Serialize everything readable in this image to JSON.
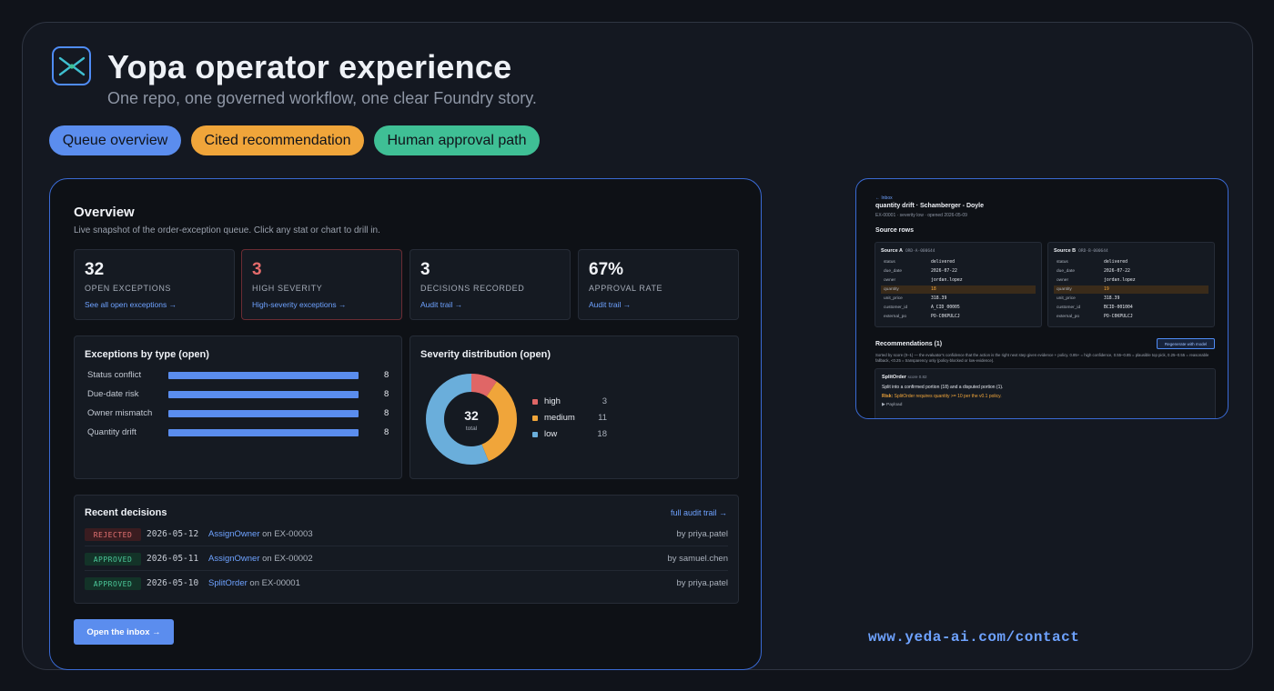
{
  "hero": {
    "title": "Yopa operator experience",
    "subtitle": "One repo, one governed workflow, one clear Foundry story."
  },
  "pills": [
    {
      "label": "Queue overview",
      "color": "#5b8dee"
    },
    {
      "label": "Cited recommendation",
      "color": "#f0a53a"
    },
    {
      "label": "Human approval path",
      "color": "#3fbf95"
    }
  ],
  "overview": {
    "title": "Overview",
    "subtitle": "Live snapshot of the order-exception queue. Click any stat or chart to drill in.",
    "stats": [
      {
        "value": "32",
        "label": "OPEN EXCEPTIONS",
        "link": "See all open exceptions →"
      },
      {
        "value": "3",
        "label": "HIGH SEVERITY",
        "link": "High-severity exceptions →"
      },
      {
        "value": "3",
        "label": "DECISIONS RECORDED",
        "link": "Audit trail →"
      },
      {
        "value": "67%",
        "label": "APPROVAL RATE",
        "link": "Audit trail →"
      }
    ],
    "by_type": {
      "title": "Exceptions by type (open)",
      "rows": [
        {
          "label": "Status conflict",
          "value": "8"
        },
        {
          "label": "Due-date risk",
          "value": "8"
        },
        {
          "label": "Owner mismatch",
          "value": "8"
        },
        {
          "label": "Quantity drift",
          "value": "8"
        }
      ]
    },
    "severity": {
      "title": "Severity distribution (open)",
      "total": "32",
      "total_label": "total",
      "segments": [
        {
          "name": "high",
          "value": "3",
          "color": "#e06666"
        },
        {
          "name": "medium",
          "value": "11",
          "color": "#f0a53a"
        },
        {
          "name": "low",
          "value": "18",
          "color": "#6aaedb"
        }
      ]
    },
    "recent": {
      "title": "Recent decisions",
      "link": "full audit trail →",
      "rows": [
        {
          "status": "REJECTED",
          "date": "2026-05-12",
          "action": "AssignOwner",
          "on": "on EX-00003",
          "by": "by priya.patel"
        },
        {
          "status": "APPROVED",
          "date": "2026-05-11",
          "action": "AssignOwner",
          "on": "on EX-00002",
          "by": "by samuel.chen"
        },
        {
          "status": "APPROVED",
          "date": "2026-05-10",
          "action": "SplitOrder",
          "on": "on EX-00001",
          "by": "by priya.patel"
        }
      ]
    },
    "inbox_button": "Open the inbox →"
  },
  "detail": {
    "back": "← Inbox",
    "title": "quantity drift · Schamberger - Doyle",
    "meta": "EX-00001 · severity low · opened 2026-05-09",
    "source_rows_title": "Source rows",
    "source_a": {
      "title": "Source A",
      "id": "ORD-A-000644",
      "rows": [
        {
          "k": "status",
          "v": "delivered"
        },
        {
          "k": "due_date",
          "v": "2026-07-22"
        },
        {
          "k": "owner",
          "v": "jordan.lopez"
        },
        {
          "k": "quantity",
          "v": "18"
        },
        {
          "k": "unit_price",
          "v": "318.39"
        },
        {
          "k": "customer_id",
          "v": "A_CID_00005"
        },
        {
          "k": "external_po",
          "v": "PO-C0KPULCJ"
        }
      ]
    },
    "source_b": {
      "title": "Source B",
      "id": "ORD-B-000644",
      "rows": [
        {
          "k": "status",
          "v": "delivered"
        },
        {
          "k": "due_date",
          "v": "2026-07-22"
        },
        {
          "k": "owner",
          "v": "jordan.lopez"
        },
        {
          "k": "quantity",
          "v": "19"
        },
        {
          "k": "unit_price",
          "v": "318.39"
        },
        {
          "k": "customer_id",
          "v": "BCID-001004"
        },
        {
          "k": "external_po",
          "v": "PO-C0KPULCJ"
        }
      ]
    },
    "recommendations_title": "Recommendations (1)",
    "regenerate_label": "Regenerate with model",
    "rec_note": "Sorted by score (0–1) — the evaluator's confidence that the action is the right next step given evidence + policy. 0.85+ = high confidence, 0.55–0.85 = plausible top pick, 0.25–0.55 = reasonable fallback, <0.25 = transparency only (policy-blocked or low-evidence).",
    "rec": {
      "name": "SplitOrder",
      "score": "score 0.82",
      "desc": "Split into a confirmed portion (18) and a disputed portion (1).",
      "risk_label": "Risk:",
      "risk": "SplitOrder requires quantity >= 10 per the v0.1 policy.",
      "payload": "▶ Payload"
    }
  },
  "footer_url": "www.yeda-ai.com/contact"
}
